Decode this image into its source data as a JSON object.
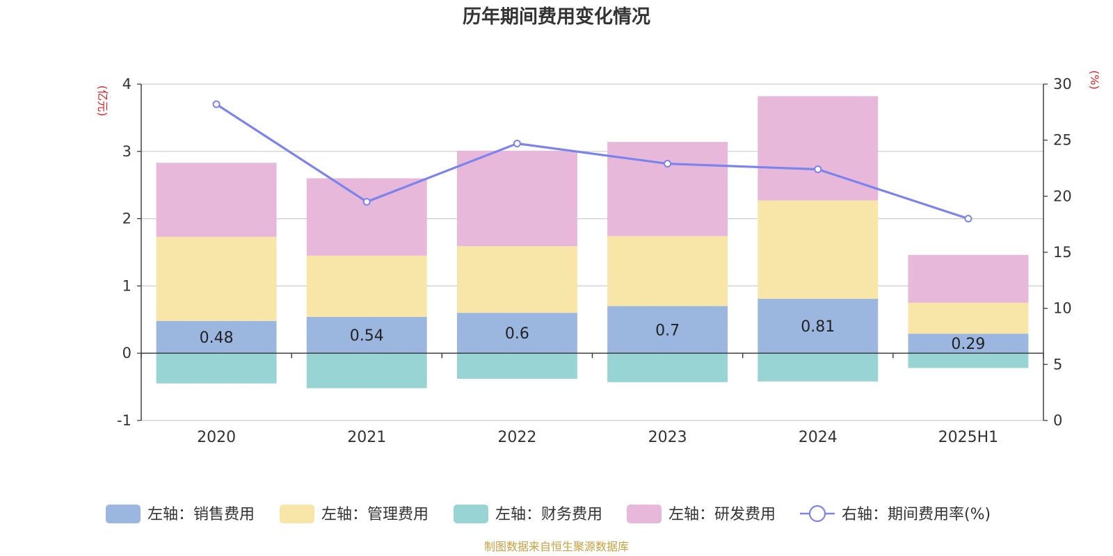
{
  "chart_data": {
    "type": "bar",
    "title": "历年期间费用变化情况",
    "categories": [
      "2020",
      "2021",
      "2022",
      "2023",
      "2024",
      "2025H1"
    ],
    "y_left": {
      "unit_label": "(亿元)",
      "min": -1,
      "max": 4,
      "ticks": [
        -1,
        0,
        1,
        2,
        3,
        4
      ]
    },
    "y_right": {
      "unit_label": "(%)",
      "min": 0,
      "max": 30,
      "ticks": [
        0,
        5,
        10,
        15,
        20,
        25,
        30
      ]
    },
    "grid": true,
    "legend_position": "bottom",
    "stacked": true,
    "series": [
      {
        "name": "左轴：销售费用",
        "type": "bar",
        "axis": "left",
        "color": "#9bb7e0",
        "values": [
          0.48,
          0.54,
          0.6,
          0.7,
          0.81,
          0.29
        ],
        "show_labels": true
      },
      {
        "name": "左轴：管理费用",
        "type": "bar",
        "axis": "left",
        "color": "#f8e6a8",
        "values": [
          1.25,
          0.91,
          0.99,
          1.04,
          1.46,
          0.46
        ]
      },
      {
        "name": "左轴：财务费用",
        "type": "bar",
        "axis": "left",
        "color": "#99d4d5",
        "values": [
          -0.45,
          -0.52,
          -0.38,
          -0.43,
          -0.42,
          -0.22
        ]
      },
      {
        "name": "左轴：研发费用",
        "type": "bar",
        "axis": "left",
        "color": "#e7b8d9",
        "values": [
          1.1,
          1.15,
          1.42,
          1.4,
          1.55,
          0.71
        ]
      },
      {
        "name": "右轴：期间费用率(%)",
        "type": "line",
        "axis": "right",
        "color": "#7b83ec",
        "values": [
          28.2,
          19.5,
          24.7,
          22.9,
          22.4,
          18.0
        ]
      }
    ],
    "source": "制图数据来自恒生聚源数据库"
  }
}
